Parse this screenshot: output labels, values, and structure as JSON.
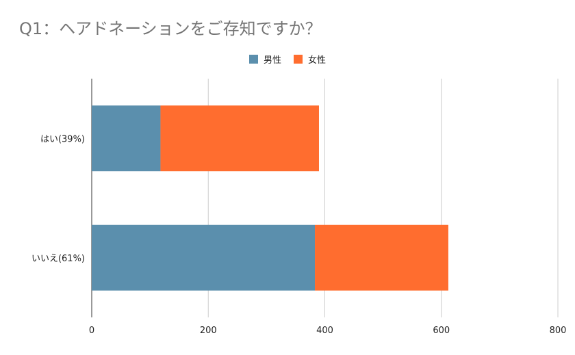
{
  "chart_data": {
    "type": "bar",
    "orientation": "horizontal",
    "stacked": true,
    "title": "Q1：ヘアドネーションをご存知ですか？",
    "categories": [
      "はい(39%)",
      "いいえ(61%)"
    ],
    "series": [
      {
        "name": "男性",
        "values": [
          118,
          383
        ],
        "color": "#5b8fad"
      },
      {
        "name": "女性",
        "values": [
          272,
          229
        ],
        "color": "#ff6d2f"
      }
    ],
    "xlim": [
      0,
      800
    ],
    "xticks": [
      "0",
      "200",
      "400",
      "600",
      "800"
    ],
    "xlabel": "",
    "ylabel": "",
    "grid": true,
    "legend_position": "top"
  }
}
